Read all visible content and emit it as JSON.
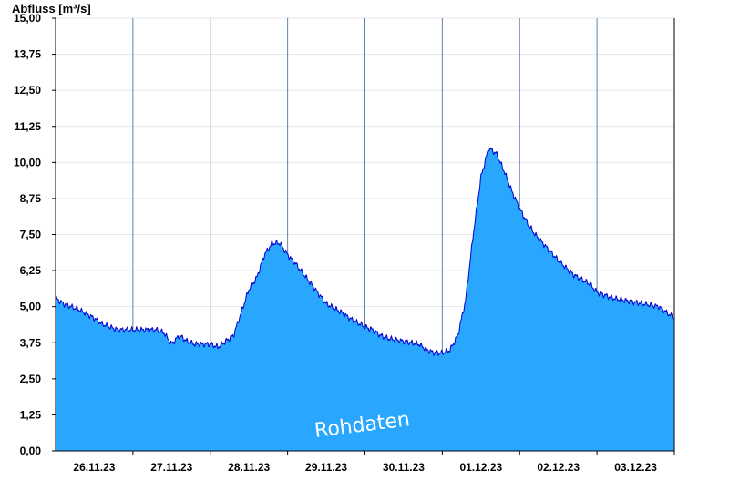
{
  "chart_data": {
    "type": "area",
    "ylabel": "Abfluss [m³/s]",
    "watermark": "Rohdaten",
    "ylim": [
      0,
      15
    ],
    "yticks": [
      "0,00",
      "1,25",
      "2,50",
      "3,75",
      "5,00",
      "6,25",
      "7,50",
      "8,75",
      "10,00",
      "11,25",
      "12,50",
      "13,75",
      "15,00"
    ],
    "yvalues": [
      0,
      1.25,
      2.5,
      3.75,
      5,
      6.25,
      7.5,
      8.75,
      10,
      11.25,
      12.5,
      13.75,
      15
    ],
    "xlim": [
      0,
      8
    ],
    "xticks": [
      "26.11.23",
      "27.11.23",
      "28.11.23",
      "29.11.23",
      "30.11.23",
      "01.12.23",
      "02.12.23",
      "03.12.23"
    ],
    "fill_color": "#29a7ff",
    "line_color": "#0000cc",
    "grid": true,
    "series": [
      {
        "x": [
          0,
          0.1,
          0.3,
          0.5,
          0.6,
          0.8,
          1.0,
          1.2,
          1.3,
          1.4,
          1.5,
          1.6,
          1.7,
          1.8,
          1.9,
          2.0,
          2.1,
          2.2,
          2.3,
          2.4,
          2.5,
          2.6,
          2.7,
          2.8,
          2.9,
          3.0,
          3.1,
          3.3,
          3.5,
          3.7,
          3.8,
          4.0,
          4.1,
          4.2,
          4.3,
          4.5,
          4.7,
          4.8,
          4.9,
          5.0,
          5.1,
          5.2,
          5.3,
          5.4,
          5.5,
          5.6,
          5.7,
          5.8,
          5.9,
          6.0,
          6.1,
          6.2,
          6.3,
          6.5,
          6.7,
          6.9,
          7.0,
          7.2,
          7.4,
          7.6,
          7.8,
          8.0
        ],
        "y": [
          5.3,
          5.1,
          4.9,
          4.6,
          4.4,
          4.2,
          4.2,
          4.2,
          4.2,
          4.1,
          3.7,
          4.0,
          3.8,
          3.7,
          3.7,
          3.7,
          3.6,
          3.8,
          4.0,
          4.8,
          5.6,
          6.0,
          6.8,
          7.2,
          7.2,
          6.8,
          6.5,
          5.8,
          5.1,
          4.8,
          4.6,
          4.3,
          4.2,
          4.0,
          3.9,
          3.8,
          3.7,
          3.5,
          3.4,
          3.4,
          3.5,
          4.0,
          5.2,
          7.5,
          9.5,
          10.5,
          10.3,
          9.7,
          9.0,
          8.4,
          7.9,
          7.5,
          7.2,
          6.6,
          6.1,
          5.8,
          5.5,
          5.3,
          5.2,
          5.1,
          5.0,
          4.6
        ]
      }
    ]
  }
}
